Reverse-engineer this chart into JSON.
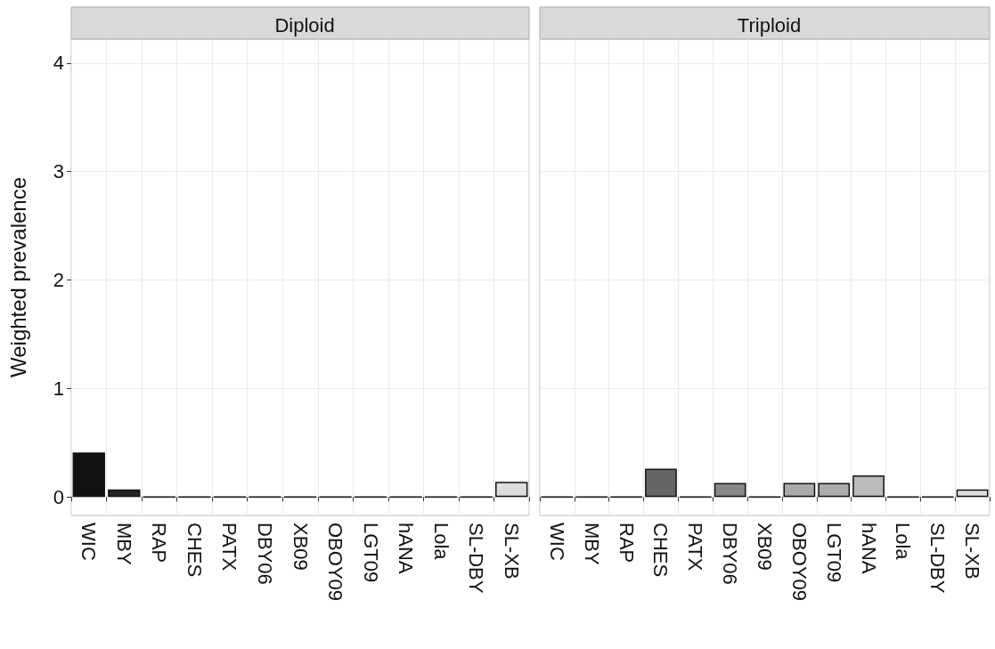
{
  "chart_data": [
    {
      "type": "bar",
      "title": "Diploid",
      "ylabel": "Weighted prevalence",
      "categories": [
        "WIC",
        "MBY",
        "RAP",
        "CHES",
        "PATX",
        "DBY06",
        "XB09",
        "OBOY09",
        "LGT09",
        "hANA",
        "Lola",
        "SL-DBY",
        "SL-XB"
      ],
      "values": [
        0.41,
        0.07,
        0,
        0,
        0,
        0,
        0,
        0,
        0,
        0,
        0,
        0,
        0.14
      ],
      "colors": [
        "#111111",
        "#222222",
        "#111111",
        "#111111",
        "#111111",
        "#111111",
        "#111111",
        "#111111",
        "#111111",
        "#111111",
        "#111111",
        "#111111",
        "#dddddd"
      ],
      "ylim": [
        -0.17,
        4.22
      ],
      "yticks": [
        0,
        1,
        2,
        3,
        4
      ],
      "grid": true
    },
    {
      "type": "bar",
      "title": "Triploid",
      "categories": [
        "WIC",
        "MBY",
        "RAP",
        "CHES",
        "PATX",
        "DBY06",
        "XB09",
        "OBOY09",
        "LGT09",
        "hANA",
        "Lola",
        "SL-DBY",
        "SL-XB"
      ],
      "values": [
        0,
        0,
        0,
        0.26,
        0,
        0.13,
        0,
        0.13,
        0.13,
        0.2,
        0,
        0,
        0.07
      ],
      "colors": [
        "#111111",
        "#111111",
        "#111111",
        "#666666",
        "#111111",
        "#888888",
        "#111111",
        "#aaaaaa",
        "#acacac",
        "#bbbbbb",
        "#111111",
        "#111111",
        "#dddddd"
      ],
      "ylim": [
        -0.17,
        4.22
      ],
      "yticks": [
        0,
        1,
        2,
        3,
        4
      ],
      "grid": true,
      "tick_labels": "x"
    }
  ]
}
